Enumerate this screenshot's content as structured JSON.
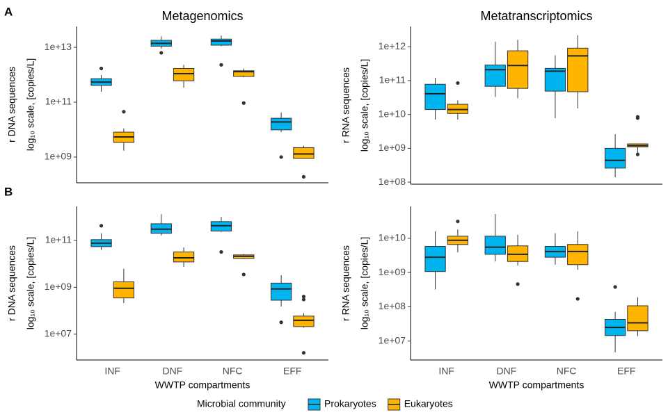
{
  "chart_data": [
    {
      "type": "box",
      "panel_label": "A",
      "title": "Metagenomics",
      "ylabel": [
        "r DNA  sequences",
        "log₁₀ scale, [copies/L]"
      ],
      "yscale": "log",
      "ylim": [
        115000000.0,
        58000000000000.0
      ],
      "yticks": [
        {
          "value": 1000000000.0,
          "label": "1e+09"
        },
        {
          "value": 100000000000.0,
          "label": "1e+11"
        },
        {
          "value": 10000000000000.0,
          "label": "1e+13"
        }
      ],
      "series": [
        {
          "name": "Prokaryotes",
          "color": "#00b4f0",
          "values": [
            {
              "min": 240000000000.0,
              "q1": 410000000000.0,
              "median": 540000000000.0,
              "q3": 720000000000.0,
              "max": 980000000000.0,
              "outliers": [
                1700000000000.0
              ]
            },
            {
              "min": 8900000000000.0,
              "q1": 11000000000000.0,
              "median": 14000000000000.0,
              "q3": 18000000000000.0,
              "max": 25000000000000.0,
              "outliers": [
                6300000000000.0
              ]
            },
            {
              "min": 11000000000000.0,
              "q1": 12000000000000.0,
              "median": 17000000000000.0,
              "q3": 20000000000000.0,
              "max": 27000000000000.0,
              "outliers": [
                2300000000000.0
              ]
            },
            {
              "min": 8100000000.0,
              "q1": 9800000000.0,
              "median": 19000000000.0,
              "q3": 26000000000.0,
              "max": 42000000000.0,
              "outliers": [
                1000000000.0
              ]
            }
          ]
        },
        {
          "name": "Eukaryotes",
          "color": "#ffb400",
          "values": [
            {
              "min": 1700000000.0,
              "q1": 3400000000.0,
              "median": 5400000000.0,
              "q3": 8100000000.0,
              "max": 11000000000.0,
              "outliers": [
                45000000000.0
              ]
            },
            {
              "min": 340000000000.0,
              "q1": 600000000000.0,
              "median": 1100000000000.0,
              "q3": 1700000000000.0,
              "max": 2300000000000.0,
              "outliers": []
            },
            {
              "min": 810000000000.0,
              "q1": 870000000000.0,
              "median": 1300000000000.0,
              "q3": 1400000000000.0,
              "max": 1700000000000.0,
              "outliers": [
                93000000000.0
              ]
            },
            {
              "min": 880000000.0,
              "q1": 890000000.0,
              "median": 1300000000.0,
              "q3": 2200000000.0,
              "max": 2600000000.0,
              "outliers": [
                190000000.0
              ]
            }
          ]
        }
      ]
    },
    {
      "type": "box",
      "title": "Metatranscriptomics",
      "ylabel": [
        "r RNA  sequences",
        "log₁₀ scale, [copies/L]"
      ],
      "yscale": "log",
      "ylim": [
        87000000.0,
        4000000000000.0
      ],
      "yticks": [
        {
          "value": 100000000.0,
          "label": "1e+08"
        },
        {
          "value": 1000000000.0,
          "label": "1e+09"
        },
        {
          "value": 10000000000.0,
          "label": "1e+10"
        },
        {
          "value": 100000000000.0,
          "label": "1e+11"
        },
        {
          "value": 1000000000000.0,
          "label": "1e+12"
        }
      ],
      "series": [
        {
          "name": "Prokaryotes",
          "color": "#00b4f0",
          "values": [
            {
              "min": 7100000000.0,
              "q1": 14000000000.0,
              "median": 41000000000.0,
              "q3": 78000000000.0,
              "max": 120000000000.0,
              "outliers": []
            },
            {
              "min": 33000000000.0,
              "q1": 68000000000.0,
              "median": 210000000000.0,
              "q3": 290000000000.0,
              "max": 1400000000000.0,
              "outliers": []
            },
            {
              "min": 7800000000.0,
              "q1": 49000000000.0,
              "median": 190000000000.0,
              "q3": 230000000000.0,
              "max": 560000000000.0,
              "outliers": []
            },
            {
              "min": 140000000.0,
              "q1": 260000000.0,
              "median": 440000000.0,
              "q3": 1000000000.0,
              "max": 2600000000.0,
              "outliers": []
            }
          ]
        },
        {
          "name": "Eukaryotes",
          "color": "#ffb400",
          "values": [
            {
              "min": 7100000000.0,
              "q1": 10700000000.0,
              "median": 14000000000.0,
              "q3": 20000000000.0,
              "max": 26000000000.0,
              "outliers": [
                85000000000.0
              ]
            },
            {
              "min": 30000000000.0,
              "q1": 59000000000.0,
              "median": 280000000000.0,
              "q3": 760000000000.0,
              "max": 1600000000000.0,
              "outliers": []
            },
            {
              "min": 15000000000.0,
              "q1": 47000000000.0,
              "median": 540000000000.0,
              "q3": 910000000000.0,
              "max": 2200000000000.0,
              "outliers": []
            },
            {
              "min": 690000000.0,
              "q1": 1100000000.0,
              "median": 1200000000.0,
              "q3": 1350000000.0,
              "max": 1350000000.0,
              "outliers": [
                8500000000.0,
                7800000000.0,
                660000000.0
              ]
            }
          ]
        }
      ]
    },
    {
      "type": "box",
      "panel_label": "B",
      "ylabel": [
        "r DNA  sequences",
        "log₁₀ scale, [copies/L]"
      ],
      "xlabel": "WWTP compartments",
      "categories": [
        "INF",
        "DNF",
        "NFC",
        "EFF"
      ],
      "yscale": "log",
      "ylim": [
        790000.0,
        2800000000000.0
      ],
      "yticks": [
        {
          "value": 10000000.0,
          "label": "1e+07"
        },
        {
          "value": 1000000000.0,
          "label": "1e+09"
        },
        {
          "value": 100000000000.0,
          "label": "1e+11"
        }
      ],
      "series": [
        {
          "name": "Prokaryotes",
          "color": "#00b4f0",
          "values": [
            {
              "min": 39000000000.0,
              "q1": 54000000000.0,
              "median": 76000000000.0,
              "q3": 107000000000.0,
              "max": 200000000000.0,
              "outliers": [
                420000000000.0
              ]
            },
            {
              "min": 160000000000.0,
              "q1": 200000000000.0,
              "median": 300000000000.0,
              "q3": 510000000000.0,
              "max": 1300000000000.0,
              "outliers": []
            },
            {
              "min": 230000000000.0,
              "q1": 250000000000.0,
              "median": 420000000000.0,
              "q3": 630000000000.0,
              "max": 1000000000000.0,
              "outliers": [
                32000000000.0
              ]
            },
            {
              "min": 150000000.0,
              "q1": 280000000.0,
              "median": 850000000.0,
              "q3": 1500000000.0,
              "max": 3300000000.0,
              "outliers": [
                32000000.0
              ]
            }
          ]
        },
        {
          "name": "Eukaryotes",
          "color": "#ffb400",
          "values": [
            {
              "min": 210000000.0,
              "q1": 350000000.0,
              "median": 910000000.0,
              "q3": 1700000000.0,
              "max": 6200000000.0,
              "outliers": []
            },
            {
              "min": 7400000000.0,
              "q1": 12000000000.0,
              "median": 18000000000.0,
              "q3": 32000000000.0,
              "max": 50000000000.0,
              "outliers": []
            },
            {
              "min": 16000000000.0,
              "q1": 17000000000.0,
              "median": 21000000000.0,
              "q3": 24000000000.0,
              "max": 26000000000.0,
              "outliers": [
                3500000000.0
              ]
            },
            {
              "min": 19000000.0,
              "q1": 21000000.0,
              "median": 39000000.0,
              "q3": 59000000.0,
              "max": 78000000.0,
              "outliers": [
                400000000.0,
                300000000.0,
                1600000.0
              ]
            }
          ]
        }
      ]
    },
    {
      "type": "box",
      "ylabel": [
        "r RNA  sequences",
        "log₁₀ scale, [copies/L]"
      ],
      "xlabel": "WWTP compartments",
      "categories": [
        "INF",
        "DNF",
        "NFC",
        "EFF"
      ],
      "yscale": "log",
      "ylim": [
        2800000.0,
        85000000000.0
      ],
      "yticks": [
        {
          "value": 10000000.0,
          "label": "1e+07"
        },
        {
          "value": 100000000.0,
          "label": "1e+08"
        },
        {
          "value": 1000000000.0,
          "label": "1e+09"
        },
        {
          "value": 10000000000.0,
          "label": "1e+10"
        }
      ],
      "series": [
        {
          "name": "Prokaryotes",
          "color": "#00b4f0",
          "values": [
            {
              "min": 320000000.0,
              "q1": 1070000000.0,
              "median": 2800000000.0,
              "q3": 5800000000.0,
              "max": 16000000000.0,
              "outliers": []
            },
            {
              "min": 2100000000.0,
              "q1": 3400000000.0,
              "median": 5500000000.0,
              "q3": 11500000000.0,
              "max": 51000000000.0,
              "outliers": []
            },
            {
              "min": 1700000000.0,
              "q1": 2800000000.0,
              "median": 4100000000.0,
              "q3": 5800000000.0,
              "max": 14000000000.0,
              "outliers": []
            },
            {
              "min": 4700000.0,
              "q1": 14500000.0,
              "median": 25000000.0,
              "q3": 43000000.0,
              "max": 71000000.0,
              "outliers": [
                380000000.0
              ]
            }
          ]
        },
        {
          "name": "Eukaryotes",
          "color": "#ffb400",
          "values": [
            {
              "min": 3900000000.0,
              "q1": 6600000000.0,
              "median": 8700000000.0,
              "q3": 11500000000.0,
              "max": 18000000000.0,
              "outliers": [
                31000000000.0
              ]
            },
            {
              "min": 1600000000.0,
              "q1": 2100000000.0,
              "median": 3400000000.0,
              "q3": 6000000000.0,
              "max": 12600000000.0,
              "outliers": [
                460000000.0
              ]
            },
            {
              "min": 1200000000.0,
              "q1": 1700000000.0,
              "median": 4100000000.0,
              "q3": 6600000000.0,
              "max": 16000000000.0,
              "outliers": [
                170000000.0
              ]
            },
            {
              "min": 14000000.0,
              "q1": 20000000.0,
              "median": 34000000.0,
              "q3": 107000000.0,
              "max": 190000000.0,
              "outliers": []
            }
          ]
        }
      ]
    }
  ],
  "legend": {
    "title": "Microbial community"
  }
}
